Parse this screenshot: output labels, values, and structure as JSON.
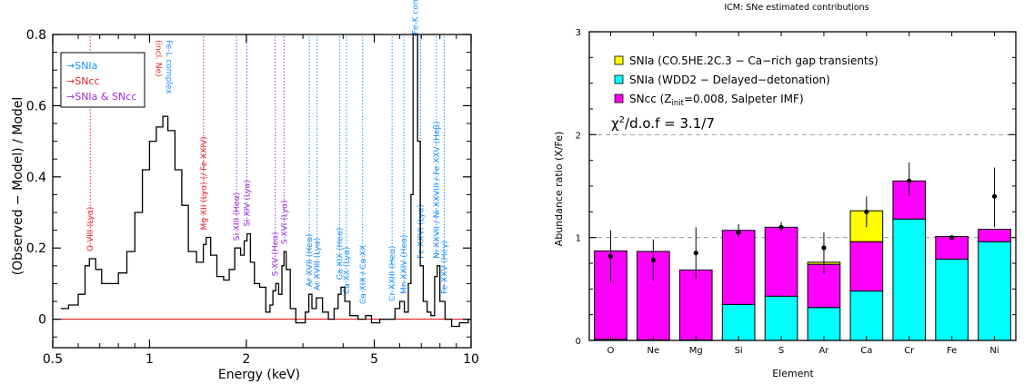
{
  "chart_data": [
    {
      "type": "line",
      "xlabel": "Energy (keV)",
      "ylabel": "(Observed − Model) / Model",
      "xscale": "log",
      "xlim": [
        0.5,
        10
      ],
      "ylim": [
        -0.08,
        0.8
      ],
      "xticks": [
        0.5,
        1,
        2,
        5,
        10
      ],
      "xtick_labels": [
        "0.5",
        "1",
        "2",
        "5",
        "10"
      ],
      "yticks": [
        0,
        0.2,
        0.4,
        0.6,
        0.8
      ],
      "ytick_labels": [
        "0",
        "0.2",
        "0.4",
        "0.6",
        "0.8"
      ],
      "zero_line_color": "#dd0000",
      "legend": {
        "placement": "top-left",
        "entries": [
          {
            "label": "→SNIa",
            "color": "#1e90ff"
          },
          {
            "label": "→SNcc",
            "color": "#e8262a"
          },
          {
            "label": "→SNIa & SNcc",
            "color": "#9b30d9"
          }
        ]
      },
      "residual_points": [
        [
          0.53,
          0.03
        ],
        [
          0.56,
          0.04
        ],
        [
          0.6,
          0.07
        ],
        [
          0.63,
          0.15
        ],
        [
          0.65,
          0.17
        ],
        [
          0.68,
          0.14
        ],
        [
          0.71,
          0.1
        ],
        [
          0.75,
          0.1
        ],
        [
          0.8,
          0.13
        ],
        [
          0.85,
          0.19
        ],
        [
          0.9,
          0.3
        ],
        [
          0.95,
          0.42
        ],
        [
          1.0,
          0.5
        ],
        [
          1.05,
          0.54
        ],
        [
          1.1,
          0.57
        ],
        [
          1.14,
          0.53
        ],
        [
          1.2,
          0.42
        ],
        [
          1.26,
          0.32
        ],
        [
          1.32,
          0.19
        ],
        [
          1.4,
          0.16
        ],
        [
          1.47,
          0.21
        ],
        [
          1.5,
          0.23
        ],
        [
          1.55,
          0.18
        ],
        [
          1.62,
          0.12
        ],
        [
          1.7,
          0.11
        ],
        [
          1.77,
          0.14
        ],
        [
          1.84,
          0.2
        ],
        [
          1.92,
          0.18
        ],
        [
          1.97,
          0.22
        ],
        [
          2.01,
          0.24
        ],
        [
          2.06,
          0.16
        ],
        [
          2.12,
          0.1
        ],
        [
          2.2,
          0.09
        ],
        [
          2.3,
          0.02
        ],
        [
          2.37,
          0.04
        ],
        [
          2.42,
          0.08
        ],
        [
          2.47,
          0.1
        ],
        [
          2.52,
          0.07
        ],
        [
          2.58,
          0.15
        ],
        [
          2.62,
          0.19
        ],
        [
          2.66,
          0.14
        ],
        [
          2.74,
          0.03
        ],
        [
          2.85,
          -0.01
        ],
        [
          2.95,
          -0.01
        ],
        [
          3.05,
          0.02
        ],
        [
          3.13,
          0.07
        ],
        [
          3.2,
          0.03
        ],
        [
          3.3,
          0.06
        ],
        [
          3.45,
          0.02
        ],
        [
          3.6,
          0.0
        ],
        [
          3.75,
          0.03
        ],
        [
          3.86,
          0.07
        ],
        [
          3.94,
          0.09
        ],
        [
          4.05,
          0.05
        ],
        [
          4.2,
          0.01
        ],
        [
          4.45,
          0.0
        ],
        [
          4.7,
          0.01
        ],
        [
          4.9,
          -0.01
        ],
        [
          5.2,
          0.0
        ],
        [
          5.5,
          0.0
        ],
        [
          5.8,
          0.03
        ],
        [
          6.0,
          0.05
        ],
        [
          6.2,
          0.02
        ],
        [
          6.38,
          0.1
        ],
        [
          6.5,
          0.35
        ],
        [
          6.6,
          0.8
        ],
        [
          6.7,
          0.8
        ],
        [
          6.82,
          0.5
        ],
        [
          6.95,
          0.15
        ],
        [
          7.1,
          0.05
        ],
        [
          7.3,
          0.02
        ],
        [
          7.5,
          0.01
        ],
        [
          7.7,
          0.12
        ],
        [
          7.85,
          0.15
        ],
        [
          8.0,
          0.05
        ],
        [
          8.3,
          0.0
        ],
        [
          8.7,
          -0.02
        ],
        [
          9.2,
          -0.01
        ],
        [
          9.8,
          0.0
        ]
      ],
      "line_annotations": [
        {
          "energy": 0.654,
          "label": "O VIII (Lyα)",
          "color": "#e8262a"
        },
        {
          "energy": 1.02,
          "label": "(incl. Ne)",
          "color": "#e8262a"
        },
        {
          "energy": 1.1,
          "label": "Fe-L complex",
          "color": "#1e90ff"
        },
        {
          "energy": 1.472,
          "label": "Mg XII (Lyα) (/ Fe XXIV)",
          "color": "#e8262a"
        },
        {
          "energy": 1.865,
          "label": "Si XIII (Heα)",
          "color": "#9b30d9"
        },
        {
          "energy": 2.006,
          "label": "Si XIV (Lyα)",
          "color": "#9b30d9"
        },
        {
          "energy": 2.46,
          "label": "S XV (Heα)",
          "color": "#9b30d9"
        },
        {
          "energy": 2.62,
          "label": "S XVI (Lyα)",
          "color": "#9b30d9"
        },
        {
          "energy": 3.14,
          "label": "Ar XVII (Heα)",
          "color": "#1e90ff"
        },
        {
          "energy": 3.32,
          "label": "Ar XVIII (Lyα)",
          "color": "#1e90ff"
        },
        {
          "energy": 3.9,
          "label": "Ca XIX (Heα)",
          "color": "#1e90ff"
        },
        {
          "energy": 4.1,
          "label": "Ca XX (Lyα)",
          "color": "#1e90ff"
        },
        {
          "energy": 4.6,
          "label": "Ca XIX / Ca XX",
          "color": "#1e90ff"
        },
        {
          "energy": 5.68,
          "label": "Cr XXIII (Heα)",
          "color": "#1e90ff"
        },
        {
          "energy": 6.18,
          "label": "Mn XXIV (Heα)",
          "color": "#1e90ff"
        },
        {
          "energy": 6.7,
          "label": "Fe-K complex",
          "color": "#1e90ff"
        },
        {
          "energy": 6.97,
          "label": "Fe XXVI (Lyα)",
          "color": "#1e90ff"
        },
        {
          "energy": 7.8,
          "label": "Ni XXVII / Ni XXVIII / Fe XXV (Heβ)",
          "color": "#1e90ff"
        },
        {
          "energy": 8.25,
          "label": "Fe XXV (Heγ)",
          "color": "#1e90ff"
        }
      ]
    },
    {
      "type": "bar",
      "stacked": true,
      "title": "ICM: SNe estimated contributions",
      "xlabel": "Element",
      "ylabel": "Abundance ratio (X/Fe)",
      "ylim": [
        0,
        3
      ],
      "yticks": [
        0,
        1,
        2,
        3
      ],
      "ytick_labels": [
        "0",
        "1",
        "2",
        "3"
      ],
      "reference_lines": [
        1,
        2
      ],
      "legend_placement": "top-left",
      "categories": [
        "O",
        "Ne",
        "Mg",
        "Si",
        "S",
        "Ar",
        "Ca",
        "Cr",
        "Fe",
        "Ni"
      ],
      "series": [
        {
          "name": "SNIa (WDD2 − Delayed−detonation)",
          "color": "#00ffff",
          "values": [
            0.01,
            0.005,
            0.005,
            0.35,
            0.43,
            0.32,
            0.48,
            1.18,
            0.79,
            0.96
          ]
        },
        {
          "name": "SNcc (Z_init=0.008, Salpeter IMF)",
          "color": "#ff00ff",
          "values": [
            0.86,
            0.86,
            0.68,
            0.72,
            0.67,
            0.42,
            0.48,
            0.37,
            0.22,
            0.12
          ]
        },
        {
          "name": "SNIa (CO.5HE.2C.3 − Ca−rich gap transients)",
          "color": "#ffff00",
          "values": [
            0.0,
            0.0,
            0.0,
            0.0,
            0.0,
            0.02,
            0.3,
            0.0,
            0.0,
            0.0
          ]
        }
      ],
      "observed": {
        "values": [
          0.82,
          0.78,
          0.85,
          1.05,
          1.1,
          0.9,
          1.25,
          1.55,
          1.0,
          1.4
        ],
        "err_low": [
          0.26,
          0.2,
          0.25,
          0.05,
          0.04,
          0.25,
          0.15,
          0.15,
          0.01,
          0.3
        ],
        "err_high": [
          0.25,
          0.2,
          0.25,
          0.08,
          0.05,
          0.15,
          0.15,
          0.18,
          0.01,
          0.28
        ]
      },
      "legend_entries": [
        {
          "label": "SNIa (CO.5HE.2C.3 − Ca−rich gap transients)",
          "color": "#ffff00"
        },
        {
          "label": "SNIa (WDD2 − Delayed−detonation)",
          "color": "#00ffff"
        },
        {
          "label_main": "SNcc (Z",
          "label_sub": "init",
          "label_rest": "=0.008, Salpeter IMF)",
          "color": "#ff00ff"
        }
      ],
      "fit_label": {
        "chi_symbol": "χ",
        "exponent": "2",
        "rest": "/d.o.f = 3.1/7"
      }
    }
  ]
}
